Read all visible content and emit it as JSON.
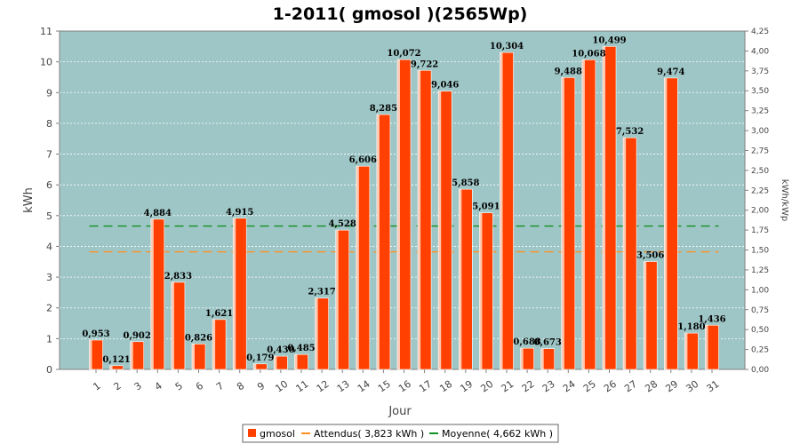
{
  "chart_data": {
    "type": "bar",
    "title": "1-2011( gmosol )(2565Wp)",
    "xlabel": "Jour",
    "ylabel": "kWh",
    "y2label": "kWh/kWp",
    "ylim": [
      0,
      11
    ],
    "y2lim": [
      0,
      4.25
    ],
    "yticks": [
      "0",
      "1",
      "2",
      "3",
      "4",
      "5",
      "6",
      "7",
      "8",
      "9",
      "10",
      "11"
    ],
    "y2ticks": [
      "0,00",
      "0,25",
      "0,50",
      "0,75",
      "1,00",
      "1,25",
      "1,50",
      "1,75",
      "2,00",
      "2,25",
      "2,50",
      "2,75",
      "3,00",
      "3,25",
      "3,50",
      "3,75",
      "4,00",
      "4,25"
    ],
    "categories": [
      "1",
      "2",
      "3",
      "4",
      "5",
      "6",
      "7",
      "8",
      "9",
      "10",
      "11",
      "12",
      "13",
      "14",
      "15",
      "16",
      "17",
      "18",
      "19",
      "20",
      "21",
      "22",
      "23",
      "24",
      "25",
      "26",
      "27",
      "28",
      "29",
      "30",
      "31"
    ],
    "series": [
      {
        "name": "gmosol",
        "color": "#ff4000",
        "values": [
          0.953,
          0.121,
          0.902,
          4.884,
          2.833,
          0.826,
          1.621,
          4.915,
          0.179,
          0.43,
          0.485,
          2.317,
          4.528,
          6.606,
          8.285,
          10.072,
          9.722,
          9.046,
          5.858,
          5.091,
          10.304,
          0.688,
          0.673,
          9.488,
          10.068,
          10.499,
          7.532,
          3.506,
          9.474,
          1.18,
          1.436
        ],
        "labels": [
          "0,953",
          "0,121",
          "0,902",
          "4,884",
          "2,833",
          "0,826",
          "1,621",
          "4,915",
          "0,179",
          "0,430",
          "0,485",
          "2,317",
          "4,528",
          "6,606",
          "8,285",
          "10,072",
          "9,722",
          "9,046",
          "5,858",
          "5,091",
          "10,304",
          "0,688",
          "0,673",
          "9,488",
          "10,068",
          "10,499",
          "7,532",
          "3,506",
          "9,474",
          "1,180",
          "1,436"
        ]
      }
    ],
    "lines": [
      {
        "name": "Attendus( 3,823 kWh )",
        "value": 3.823,
        "color": "#ff9020"
      },
      {
        "name": "Moyenne( 4,662 kWh )",
        "value": 4.662,
        "color": "#109020"
      }
    ],
    "grid": true,
    "legend": "bottom-center",
    "plot_background": "#9fc6c6"
  }
}
